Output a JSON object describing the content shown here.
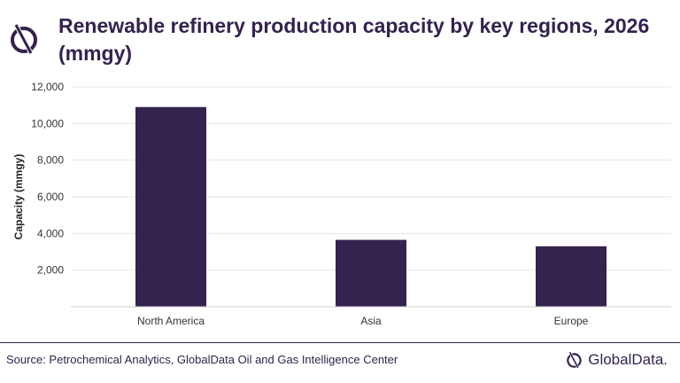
{
  "colors": {
    "accent": "#34224f",
    "bar": "#34224f",
    "grid": "#e6e6e6",
    "text": "#333333"
  },
  "icons": {
    "top_logo": "globaldata-logo-icon",
    "brand_logo": "globaldata-logo-icon"
  },
  "header": {
    "title": "Renewable refinery production capacity by key regions, 2026 (mmgy)"
  },
  "footer": {
    "source": "Source: Petrochemical Analytics, GlobalData Oil and Gas Intelligence Center",
    "brand": "GlobalData."
  },
  "chart_data": {
    "type": "bar",
    "title": "Renewable refinery production capacity by key regions, 2026 (mmgy)",
    "categories": [
      "North America",
      "Asia",
      "Europe"
    ],
    "values": [
      10900,
      3650,
      3300
    ],
    "ylabel": "Capacity (mmgy)",
    "xlabel": "",
    "ylim": [
      0,
      12000
    ],
    "yticks": [
      2000,
      4000,
      6000,
      8000,
      10000,
      12000
    ],
    "ytick_labels": [
      "2,000",
      "4,000",
      "6,000",
      "8,000",
      "10,000",
      "12,000"
    ],
    "grid": true,
    "legend": "none"
  }
}
